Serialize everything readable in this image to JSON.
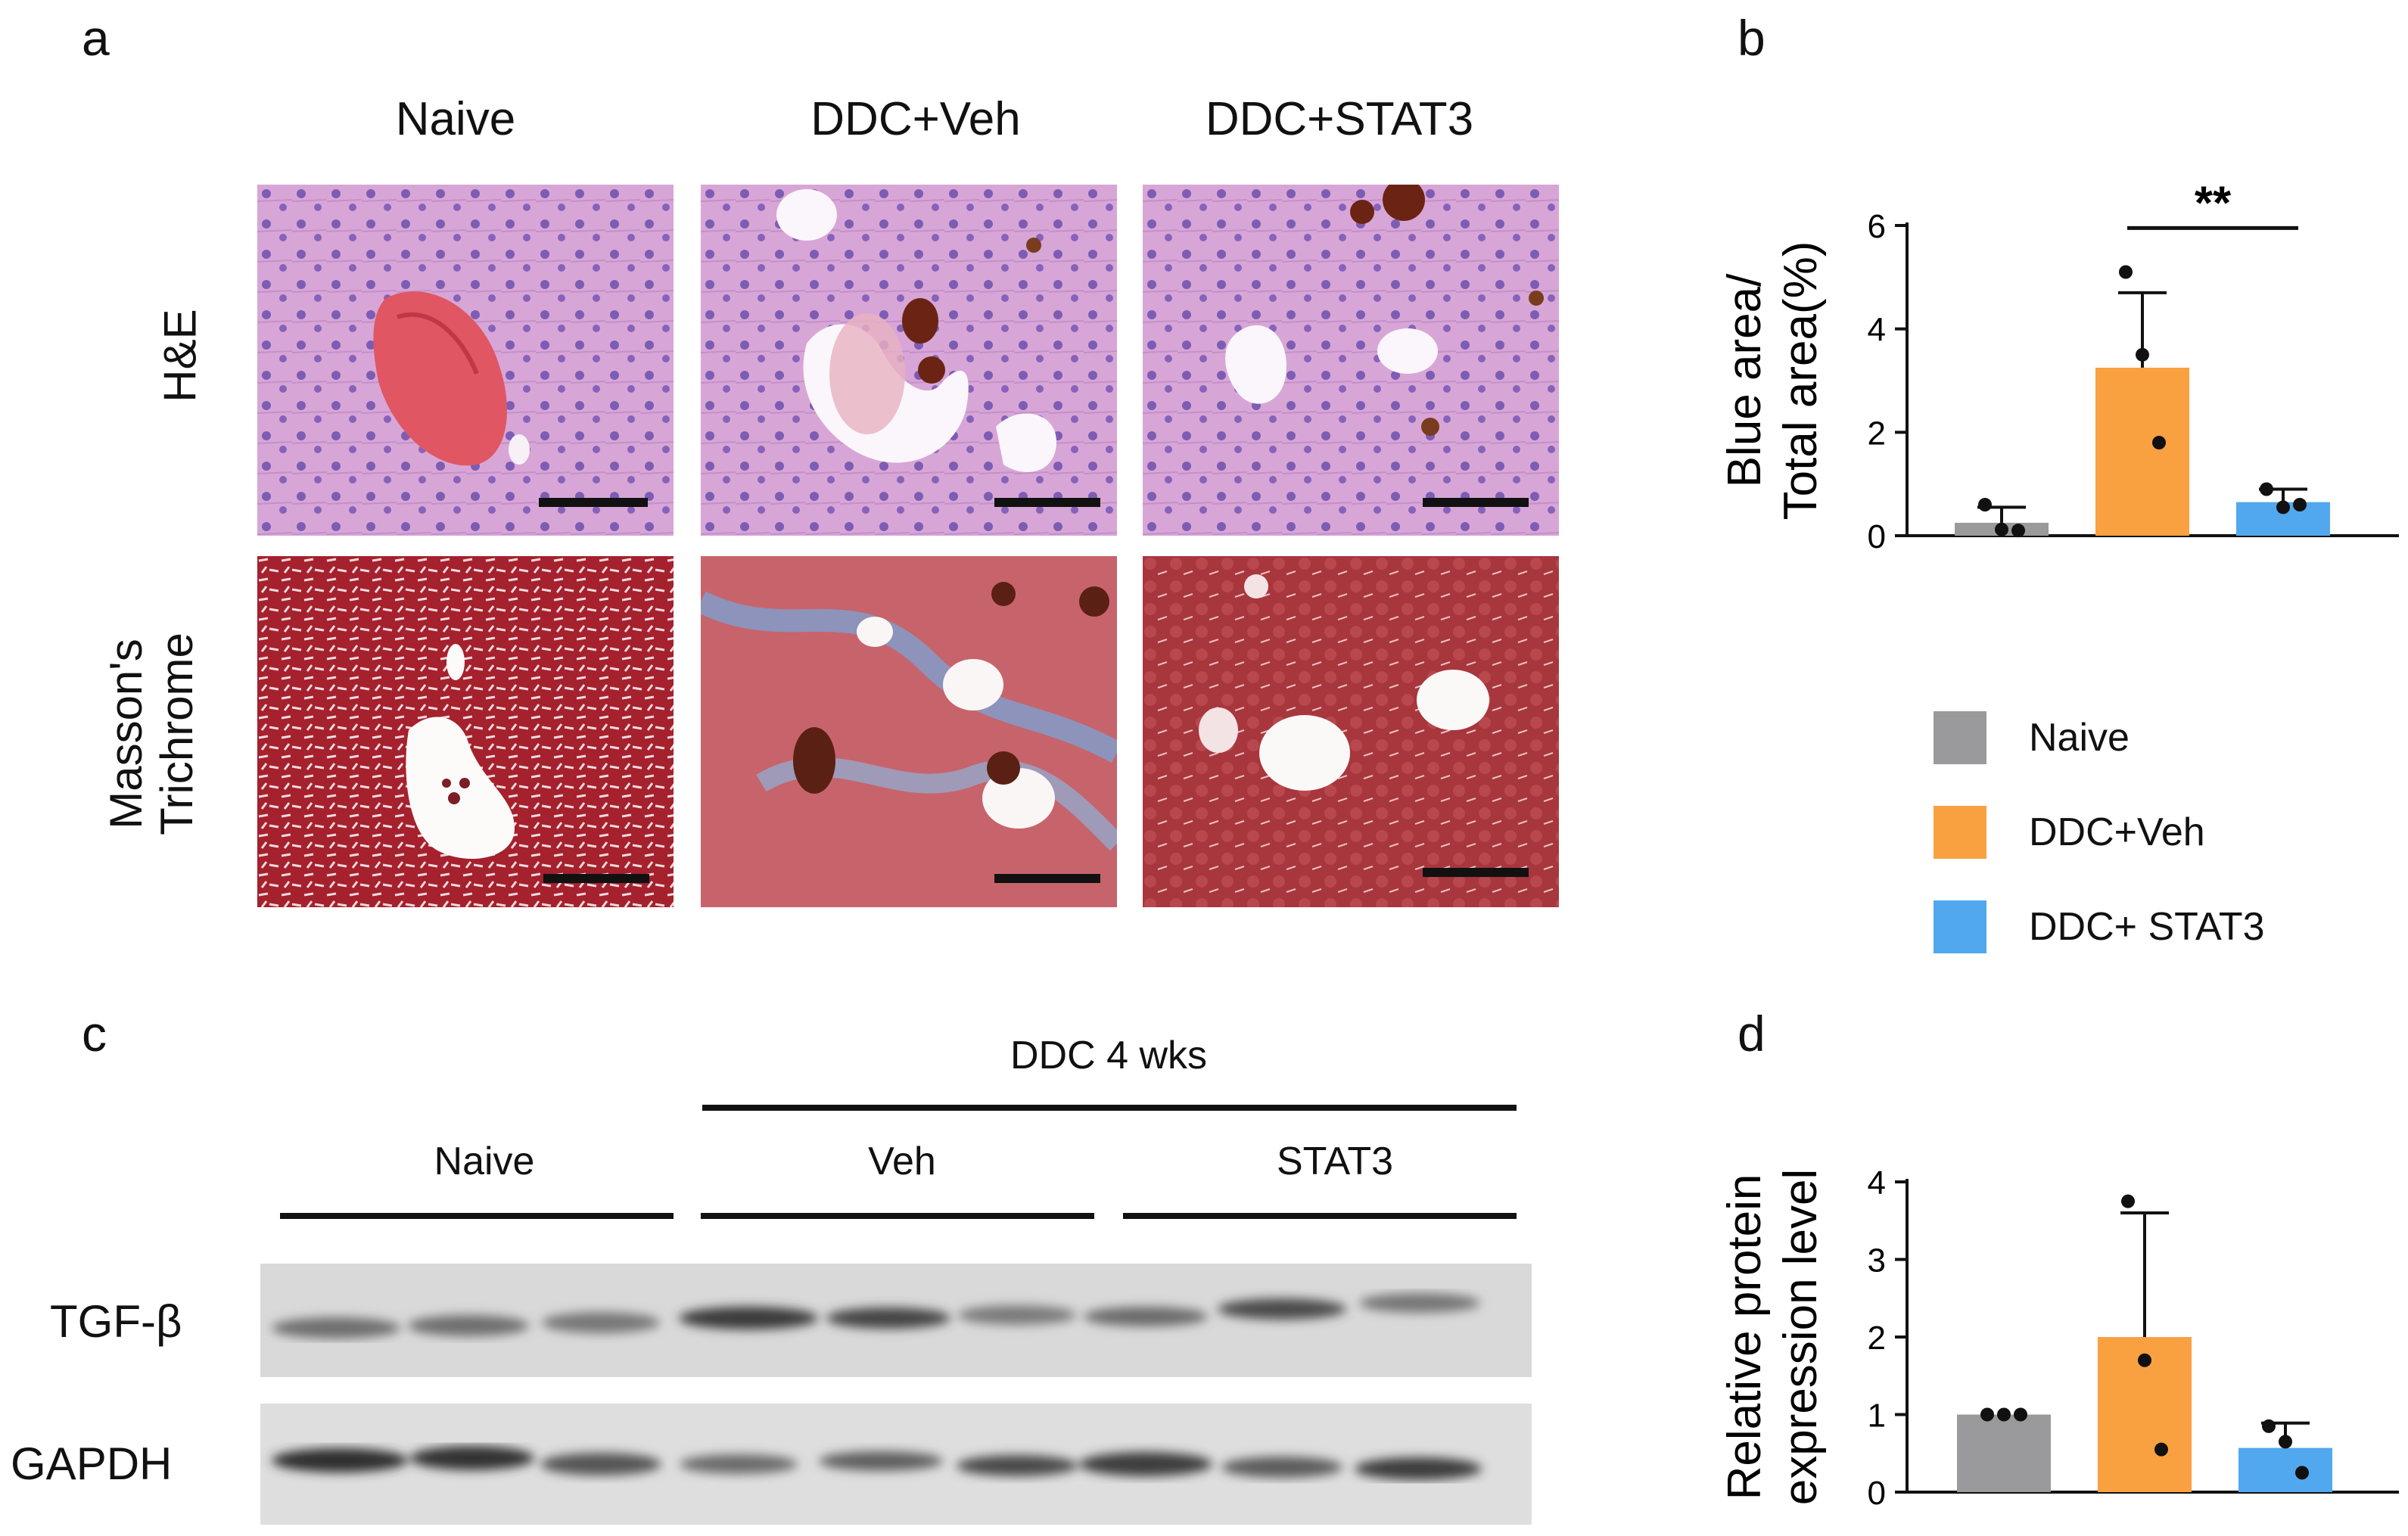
{
  "panel_letters": {
    "a": "a",
    "b": "b",
    "c": "c",
    "d": "d"
  },
  "histology": {
    "columns": [
      "Naive",
      "DDC+Veh",
      "DDC+STAT3"
    ],
    "rows": {
      "he": "H&E",
      "masson_1": "Masson's",
      "masson_2": "Trichrome"
    }
  },
  "blot": {
    "top_group": "DDC 4 wks",
    "groups": [
      "Naive",
      "Veh",
      "STAT3"
    ],
    "rows": [
      "TGF-β",
      "GAPDH"
    ]
  },
  "legend": [
    {
      "label": "Naive",
      "color": "#9a9a9c"
    },
    {
      "label": "DDC+Veh",
      "color": "#f9a141"
    },
    {
      "label": "DDC+ STAT3",
      "color": "#52a8ee"
    }
  ],
  "chart_data": [
    {
      "type": "bar",
      "panel": "b",
      "ylabel_lines": [
        "Blue area/",
        "Total area(%)"
      ],
      "ylim": [
        0,
        6
      ],
      "yticks": [
        "0",
        "2",
        "4",
        "6"
      ],
      "categories": [
        "Naive",
        "DDC+Veh",
        "DDC+ STAT3"
      ],
      "values": [
        0.25,
        3.25,
        0.65
      ],
      "error": [
        0.3,
        1.45,
        0.25
      ],
      "points": [
        [
          0.6,
          0.12,
          0.1
        ],
        [
          5.1,
          3.5,
          1.8
        ],
        [
          0.9,
          0.55,
          0.6
        ]
      ],
      "colors": [
        "#9a9a9c",
        "#f9a141",
        "#52a8ee"
      ],
      "annotation": "**"
    },
    {
      "type": "bar",
      "panel": "d",
      "ylabel_lines": [
        "Relative protein",
        "expression level"
      ],
      "ylim": [
        0,
        4
      ],
      "yticks": [
        "0",
        "1",
        "2",
        "3",
        "4"
      ],
      "categories": [
        "Naive",
        "DDC+Veh",
        "DDC+ STAT3"
      ],
      "values": [
        1.0,
        2.0,
        0.57
      ],
      "error": [
        0,
        1.6,
        0.32
      ],
      "points": [
        [
          1.0,
          1.0,
          1.0
        ],
        [
          3.75,
          1.7,
          0.55
        ],
        [
          0.85,
          0.65,
          0.25
        ]
      ],
      "colors": [
        "#9a9a9c",
        "#f9a141",
        "#52a8ee"
      ]
    }
  ]
}
